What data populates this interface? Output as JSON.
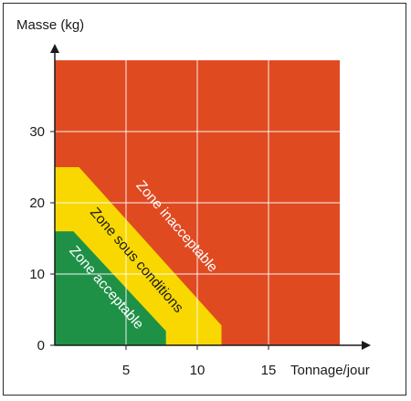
{
  "chart_data": {
    "type": "area",
    "ylabel": "Masse (kg)",
    "xlabel": "Tonnage/jour",
    "xlim": [
      0,
      20
    ],
    "ylim": [
      0,
      40
    ],
    "xticks": [
      5,
      10,
      15
    ],
    "yticks": [
      0,
      10,
      20,
      30
    ],
    "grid": true,
    "zones": [
      {
        "name": "Zone inacceptable",
        "color": "#e04a21",
        "text_color": "#ffffff",
        "polygon": [
          [
            0,
            0
          ],
          [
            20,
            0
          ],
          [
            20,
            40
          ],
          [
            0,
            40
          ]
        ]
      },
      {
        "name": "Zone sous conditions",
        "color": "#f8d800",
        "text_color": "#1a1a1a",
        "polygon": [
          [
            0,
            0
          ],
          [
            11.7,
            0
          ],
          [
            11.7,
            2.8
          ],
          [
            1.7,
            25
          ],
          [
            0,
            25
          ]
        ]
      },
      {
        "name": "Zone acceptable",
        "color": "#1f9147",
        "text_color": "#ffffff",
        "polygon": [
          [
            0,
            0
          ],
          [
            7.8,
            0
          ],
          [
            7.8,
            2
          ],
          [
            1.3,
            16
          ],
          [
            0,
            16
          ]
        ]
      }
    ]
  }
}
